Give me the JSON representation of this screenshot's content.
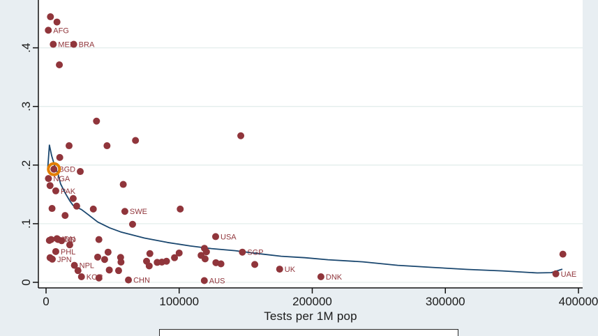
{
  "window": {
    "background": "#e8eef2"
  },
  "chart_data": {
    "type": "scatter",
    "title": "",
    "xlabel": "Tests per 1M pop",
    "ylabel": "",
    "xlim": [
      0,
      400000
    ],
    "ylim": [
      0,
      0.49
    ],
    "grid": "horizontal",
    "legend_position": "bottom (cut off, contents not visible)",
    "x_ticks": [
      {
        "value": 0,
        "label": "0"
      },
      {
        "value": 100000,
        "label": "100000"
      },
      {
        "value": 200000,
        "label": "200000"
      },
      {
        "value": 300000,
        "label": "300000"
      },
      {
        "value": 400000,
        "label": "400000"
      }
    ],
    "y_ticks": [
      {
        "value": 0,
        "label": "0"
      },
      {
        "value": 0.1,
        "label": ".1"
      },
      {
        "value": 0.2,
        "label": ".2"
      },
      {
        "value": 0.3,
        "label": ".3"
      },
      {
        "value": 0.4,
        "label": ".4"
      }
    ],
    "colors": {
      "point": "#90353B",
      "point_label": "#90353B",
      "fit_line": "#1A476F",
      "highlight_ring": "#E37E00",
      "plot_bg": "#ffffff",
      "grid_line": "#e3edec",
      "axis": "#111111",
      "tick_text": "#1a1a1a",
      "outer_bg": "#e8eef2",
      "legend_border": "#2a2a2a"
    },
    "highlighted_point": "BGD",
    "points": [
      {
        "x": 3300,
        "y": 0.453
      },
      {
        "x": 8200,
        "y": 0.444
      },
      {
        "x": 1700,
        "y": 0.43,
        "label": "AFG"
      },
      {
        "x": 5400,
        "y": 0.406,
        "label": "MEX"
      },
      {
        "x": 20800,
        "y": 0.406,
        "label": "BRA"
      },
      {
        "x": 10000,
        "y": 0.371
      },
      {
        "x": 37900,
        "y": 0.275
      },
      {
        "x": 17300,
        "y": 0.233
      },
      {
        "x": 45800,
        "y": 0.233
      },
      {
        "x": 67200,
        "y": 0.242
      },
      {
        "x": 146300,
        "y": 0.25
      },
      {
        "x": 10300,
        "y": 0.213
      },
      {
        "x": 5900,
        "y": 0.193,
        "label": "BGD",
        "highlight": true
      },
      {
        "x": 25700,
        "y": 0.189
      },
      {
        "x": 1800,
        "y": 0.177,
        "label": "NGA"
      },
      {
        "x": 3000,
        "y": 0.165
      },
      {
        "x": 7300,
        "y": 0.156,
        "label": "PAK"
      },
      {
        "x": 58000,
        "y": 0.167
      },
      {
        "x": 20400,
        "y": 0.143
      },
      {
        "x": 4500,
        "y": 0.126
      },
      {
        "x": 23000,
        "y": 0.13
      },
      {
        "x": 35500,
        "y": 0.125
      },
      {
        "x": 59200,
        "y": 0.121,
        "label": "SWE"
      },
      {
        "x": 100800,
        "y": 0.125
      },
      {
        "x": 14300,
        "y": 0.114
      },
      {
        "x": 65000,
        "y": 0.099
      },
      {
        "x": 2500,
        "y": 0.0715
      },
      {
        "x": 3800,
        "y": 0.073
      },
      {
        "x": 8200,
        "y": 0.0745,
        "label": "IDN"
      },
      {
        "x": 9000,
        "y": 0.073,
        "label": "IND"
      },
      {
        "x": 11700,
        "y": 0.071
      },
      {
        "x": 17800,
        "y": 0.064
      },
      {
        "x": 7300,
        "y": 0.0525,
        "label": "PHL"
      },
      {
        "x": 3000,
        "y": 0.042
      },
      {
        "x": 4700,
        "y": 0.0395,
        "label": "JPN"
      },
      {
        "x": 21300,
        "y": 0.029,
        "label": "NPL"
      },
      {
        "x": 24000,
        "y": 0.02
      },
      {
        "x": 26600,
        "y": 0.0095,
        "label": "KOR"
      },
      {
        "x": 39700,
        "y": 0.0075
      },
      {
        "x": 38800,
        "y": 0.043
      },
      {
        "x": 44000,
        "y": 0.039
      },
      {
        "x": 46600,
        "y": 0.0515
      },
      {
        "x": 47500,
        "y": 0.021
      },
      {
        "x": 54500,
        "y": 0.02
      },
      {
        "x": 56000,
        "y": 0.0425
      },
      {
        "x": 56300,
        "y": 0.0345
      },
      {
        "x": 39700,
        "y": 0.073
      },
      {
        "x": 61900,
        "y": 0.004,
        "label": "CHN"
      },
      {
        "x": 75500,
        "y": 0.036
      },
      {
        "x": 77500,
        "y": 0.028
      },
      {
        "x": 78000,
        "y": 0.049
      },
      {
        "x": 83500,
        "y": 0.034
      },
      {
        "x": 87000,
        "y": 0.0345
      },
      {
        "x": 90500,
        "y": 0.036
      },
      {
        "x": 96500,
        "y": 0.042
      },
      {
        "x": 100000,
        "y": 0.05
      },
      {
        "x": 116500,
        "y": 0.046
      },
      {
        "x": 119000,
        "y": 0.058
      },
      {
        "x": 120500,
        "y": 0.052
      },
      {
        "x": 119500,
        "y": 0.04
      },
      {
        "x": 127400,
        "y": 0.078,
        "label": "USA"
      },
      {
        "x": 147500,
        "y": 0.0515,
        "label": "SGP"
      },
      {
        "x": 127600,
        "y": 0.0335
      },
      {
        "x": 131400,
        "y": 0.0315
      },
      {
        "x": 156800,
        "y": 0.0305
      },
      {
        "x": 175500,
        "y": 0.0225,
        "label": "UK"
      },
      {
        "x": 206500,
        "y": 0.0095,
        "label": "DNK"
      },
      {
        "x": 118900,
        "y": 0.003,
        "label": "AUS"
      },
      {
        "x": 388300,
        "y": 0.048
      },
      {
        "x": 383000,
        "y": 0.0145,
        "label": "UAE"
      }
    ],
    "fit_line": {
      "name": "fitted-curve",
      "points": [
        [
          1200,
          0.192
        ],
        [
          2500,
          0.234
        ],
        [
          4200,
          0.216
        ],
        [
          6300,
          0.2
        ],
        [
          9100,
          0.184
        ],
        [
          10900,
          0.168
        ],
        [
          14300,
          0.1525
        ],
        [
          17800,
          0.139
        ],
        [
          20400,
          0.131
        ],
        [
          26700,
          0.124
        ],
        [
          32000,
          0.115
        ],
        [
          38800,
          0.103
        ],
        [
          47700,
          0.093
        ],
        [
          56100,
          0.086
        ],
        [
          73900,
          0.0755
        ],
        [
          91200,
          0.068
        ],
        [
          108500,
          0.062
        ],
        [
          124200,
          0.0575
        ],
        [
          142100,
          0.054
        ],
        [
          159400,
          0.049
        ],
        [
          176700,
          0.0445
        ],
        [
          194500,
          0.042
        ],
        [
          211800,
          0.0385
        ],
        [
          238000,
          0.035
        ],
        [
          264200,
          0.029
        ],
        [
          290400,
          0.0255
        ],
        [
          316600,
          0.022
        ],
        [
          342800,
          0.0195
        ],
        [
          369000,
          0.016
        ],
        [
          379500,
          0.0165
        ],
        [
          387900,
          0.0225
        ]
      ]
    }
  }
}
